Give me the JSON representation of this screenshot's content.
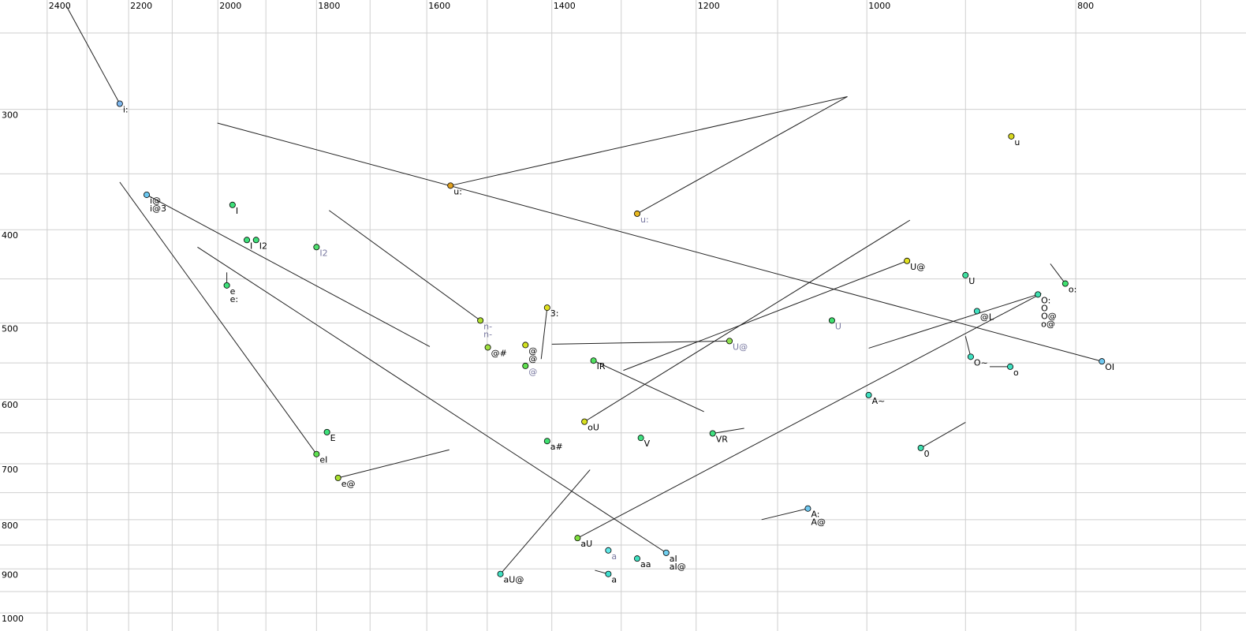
{
  "chart_data": {
    "type": "scatter",
    "xscale": "log",
    "yscale": "log",
    "xlim": [
      2524,
      667
    ],
    "ylim": [
      231,
      1044
    ],
    "xticks": [
      2400,
      2200,
      2000,
      1800,
      1600,
      1400,
      1200,
      1000,
      800
    ],
    "xminor": [
      2300,
      2100,
      1900,
      1700,
      1500,
      1300,
      1100,
      900,
      700
    ],
    "yticks": [
      300,
      400,
      500,
      600,
      700,
      800,
      900,
      1000
    ],
    "yminor": [
      250,
      350,
      450,
      550,
      650,
      750,
      850,
      950
    ],
    "grid": true,
    "line_color": "#222222",
    "points": [
      {
        "labels": [
          "i:"
        ],
        "x": 2221,
        "y": 296,
        "end": [
          2352,
          234
        ],
        "color": "#7fb8ee",
        "label_color": "#000000"
      },
      {
        "labels": [
          "i@",
          "i@3"
        ],
        "x": 2158,
        "y": 368,
        "end": [
          1595,
          529
        ],
        "color": "#6cc8f0",
        "label_color": "#000000"
      },
      {
        "labels": [
          "I"
        ],
        "x": 1969,
        "y": 377,
        "color": "#3ee07a",
        "label_color": "#000000"
      },
      {
        "labels": [
          "I"
        ],
        "x": 1939,
        "y": 410,
        "color": "#3ee07a",
        "label_color": "#000000"
      },
      {
        "labels": [
          "I2"
        ],
        "x": 1920,
        "y": 410,
        "color": "#3ee07a",
        "label_color": "#000000"
      },
      {
        "labels": [
          "I2"
        ],
        "x": 1800,
        "y": 417,
        "color": "#50e070",
        "label_color": "#7878a0"
      },
      {
        "labels": [
          "e",
          "e:"
        ],
        "x": 1981,
        "y": 457,
        "end": [
          1981,
          443
        ],
        "color": "#3ee07a",
        "label_color": "#000000"
      },
      {
        "labels": [
          "eI"
        ],
        "x": 1800,
        "y": 684,
        "end": [
          2221,
          357
        ],
        "color": "#5ee050",
        "label_color": "#000000"
      },
      {
        "labels": [
          "E"
        ],
        "x": 1780,
        "y": 649,
        "color": "#3ee07a",
        "label_color": "#000000"
      },
      {
        "labels": [
          "e@"
        ],
        "x": 1759,
        "y": 724,
        "end": [
          1562,
          677
        ],
        "color": "#a8e030",
        "label_color": "#000000"
      },
      {
        "labels": [
          "u:"
        ],
        "x": 1560,
        "y": 360,
        "end": [
          1021,
          291
        ],
        "color": "#e0a020",
        "label_color": "#000000"
      },
      {
        "labels": [
          "u:"
        ],
        "x": 1278,
        "y": 385,
        "end": [
          1021,
          291
        ],
        "color": "#e8b820",
        "label_color": "#7878a0"
      },
      {
        "labels": [
          "u"
        ],
        "x": 857,
        "y": 320,
        "color": "#d8d820",
        "label_color": "#000000"
      },
      {
        "labels": [
          "n-",
          "n-"
        ],
        "x": 1511,
        "y": 497,
        "end": [
          1776,
          382
        ],
        "color": "#b0e030",
        "label_color": "#7878a0"
      },
      {
        "labels": [
          "@#"
        ],
        "x": 1499,
        "y": 530,
        "color": "#a0e040",
        "label_color": "#000000"
      },
      {
        "labels": [
          "3:"
        ],
        "x": 1407,
        "y": 482,
        "end": [
          1416,
          545
        ],
        "color": "#e0e020",
        "label_color": "#000000"
      },
      {
        "labels": [
          "@",
          "@"
        ],
        "x": 1440,
        "y": 527,
        "color": "#d0e020",
        "label_color": "#000000"
      },
      {
        "labels": [
          "@"
        ],
        "x": 1440,
        "y": 554,
        "color": "#60e050",
        "label_color": "#7878a0"
      },
      {
        "labels": [
          "U@"
        ],
        "x": 1158,
        "y": 522,
        "end": [
          1400,
          526
        ],
        "color": "#90e050",
        "label_color": "#7878a0"
      },
      {
        "labels": [
          "IR"
        ],
        "x": 1339,
        "y": 547,
        "end": [
          1190,
          618
        ],
        "color": "#50e060",
        "label_color": "#000000"
      },
      {
        "labels": [
          "oU"
        ],
        "x": 1352,
        "y": 633,
        "end": [
          955,
          391
        ],
        "color": "#d8e020",
        "label_color": "#000000"
      },
      {
        "labels": [
          "U@"
        ],
        "x": 958,
        "y": 431,
        "end": [
          1297,
          560
        ],
        "color": "#e0e020",
        "label_color": "#000000"
      },
      {
        "labels": [
          "V"
        ],
        "x": 1273,
        "y": 658,
        "color": "#40e080",
        "label_color": "#000000"
      },
      {
        "labels": [
          "VR"
        ],
        "x": 1179,
        "y": 651,
        "end": [
          1140,
          643
        ],
        "color": "#40e080",
        "label_color": "#000000"
      },
      {
        "labels": [
          "a#"
        ],
        "x": 1407,
        "y": 663,
        "color": "#40e070",
        "label_color": "#000000"
      },
      {
        "labels": [
          "aU"
        ],
        "x": 1362,
        "y": 836,
        "end": [
          830,
          466
        ],
        "color": "#80e040",
        "label_color": "#000000"
      },
      {
        "labels": [
          "aU@"
        ],
        "x": 1479,
        "y": 911,
        "end": [
          1344,
          710
        ],
        "color": "#40e0c0",
        "label_color": "#000000"
      },
      {
        "labels": [
          "a"
        ],
        "x": 1318,
        "y": 861,
        "color": "#60e8e8",
        "label_color": "#7878a0"
      },
      {
        "labels": [
          "aa"
        ],
        "x": 1278,
        "y": 878,
        "color": "#40e0c0",
        "label_color": "#000000"
      },
      {
        "labels": [
          "a"
        ],
        "x": 1318,
        "y": 911,
        "end": [
          1337,
          903
        ],
        "color": "#40e0d0",
        "label_color": "#000000"
      },
      {
        "labels": [
          "aI",
          "aI@"
        ],
        "x": 1239,
        "y": 866,
        "end": [
          2044,
          417
        ],
        "color": "#70d0f0",
        "label_color": "#000000"
      },
      {
        "labels": [
          "A:",
          "A@"
        ],
        "x": 1065,
        "y": 779,
        "end": [
          1119,
          800
        ],
        "color": "#70c8f0",
        "label_color": "#000000"
      },
      {
        "labels": [
          "A~"
        ],
        "x": 998,
        "y": 594,
        "color": "#40e0c0",
        "label_color": "#000000"
      },
      {
        "labels": [
          "0"
        ],
        "x": 944,
        "y": 674,
        "end": [
          900,
          634
        ],
        "color": "#40e0b0",
        "label_color": "#000000"
      },
      {
        "labels": [
          "U"
        ],
        "x": 1038,
        "y": 497,
        "color": "#40e070",
        "label_color": "#7878a0"
      },
      {
        "labels": [
          "U"
        ],
        "x": 900,
        "y": 446,
        "color": "#40e0a0",
        "label_color": "#000000"
      },
      {
        "labels": [
          "@L"
        ],
        "x": 889,
        "y": 486,
        "color": "#40e0c0",
        "label_color": "#000000"
      },
      {
        "labels": [
          "O:",
          "O",
          "O@",
          "o@"
        ],
        "x": 833,
        "y": 467,
        "end": [
          998,
          531
        ],
        "color": "#40e0b0",
        "label_color": "#000000"
      },
      {
        "labels": [
          "o:"
        ],
        "x": 809,
        "y": 455,
        "end": [
          822,
          434
        ],
        "color": "#40e070",
        "label_color": "#000000"
      },
      {
        "labels": [
          "OI"
        ],
        "x": 778,
        "y": 548,
        "end": [
          2001,
          310
        ],
        "color": "#70c8f0",
        "label_color": "#000000"
      },
      {
        "labels": [
          "O~"
        ],
        "x": 895,
        "y": 542,
        "end": [
          900,
          516
        ],
        "color": "#40e0c0",
        "label_color": "#000000"
      },
      {
        "labels": [
          "o"
        ],
        "x": 858,
        "y": 555,
        "end": [
          877,
          555
        ],
        "color": "#40e0c0",
        "label_color": "#000000"
      }
    ]
  }
}
